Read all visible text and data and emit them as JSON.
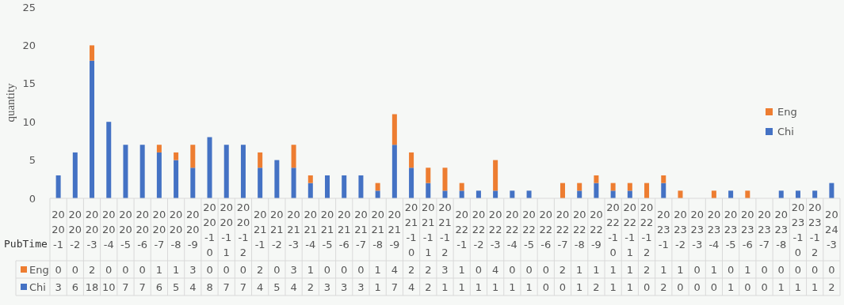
{
  "chart_data": {
    "type": "bar",
    "stacked": true,
    "ylabel": "quantity",
    "xlabel": "PubTime",
    "categories": [
      "2020-1",
      "2020-2",
      "2020-3",
      "2020-4",
      "2020-5",
      "2020-6",
      "2020-7",
      "2020-8",
      "2020-9",
      "2020-10",
      "2020-11",
      "2020-12",
      "2021-1",
      "2021-2",
      "2021-3",
      "2021-4",
      "2021-5",
      "2021-6",
      "2021-7",
      "2021-8",
      "2021-9",
      "2021-10",
      "2021-11",
      "2021-12",
      "2022-1",
      "2022-2",
      "2022-3",
      "2022-4",
      "2022-5",
      "2022-6",
      "2022-7",
      "2022-8",
      "2022-9",
      "2022-10",
      "2022-11",
      "2022-12",
      "2023-1",
      "2023-2",
      "2023-3",
      "2023-4",
      "2023-5",
      "2023-6",
      "2023-7",
      "2023-8",
      "2023-10",
      "2023-12",
      "2024-3"
    ],
    "series": [
      {
        "name": "Chi",
        "color": "#4472c4",
        "values": [
          3,
          6,
          18,
          10,
          7,
          7,
          6,
          5,
          4,
          8,
          7,
          7,
          4,
          5,
          4,
          2,
          3,
          3,
          3,
          1,
          7,
          4,
          2,
          1,
          1,
          1,
          1,
          1,
          1,
          0,
          0,
          1,
          2,
          1,
          1,
          0,
          2,
          0,
          0,
          0,
          1,
          0,
          0,
          1,
          1,
          1,
          2
        ]
      },
      {
        "name": "Eng",
        "color": "#ed7d31",
        "values": [
          0,
          0,
          2,
          0,
          0,
          0,
          1,
          1,
          3,
          0,
          0,
          0,
          2,
          0,
          3,
          1,
          0,
          0,
          0,
          1,
          4,
          2,
          2,
          3,
          1,
          0,
          4,
          0,
          0,
          0,
          2,
          1,
          1,
          1,
          1,
          2,
          1,
          1,
          0,
          1,
          0,
          1,
          0,
          0,
          0,
          0,
          0
        ]
      }
    ],
    "ylim": [
      0,
      25
    ],
    "yticks": [
      0,
      5,
      10,
      15,
      20,
      25
    ],
    "data_labels": true,
    "legend": "right"
  }
}
